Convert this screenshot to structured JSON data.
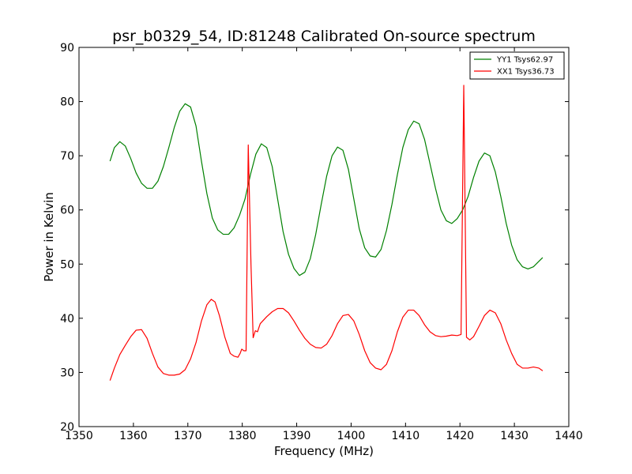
{
  "chart_data": {
    "type": "line",
    "title": "psr_b0329_54, ID:81248 Calibrated On-source spectrum",
    "xlabel": "Frequency (MHz)",
    "ylabel": "Power in Kelvin",
    "xlim": [
      1350,
      1440
    ],
    "ylim": [
      20,
      90
    ],
    "xticks": [
      1350,
      1360,
      1370,
      1380,
      1390,
      1400,
      1410,
      1420,
      1430,
      1440
    ],
    "yticks": [
      20,
      30,
      40,
      50,
      60,
      70,
      80,
      90
    ],
    "grid": false,
    "legend_position": "top-right",
    "series": [
      {
        "name": "YY1 Tsys62.97",
        "color": "#008000",
        "points": [
          [
            1355.7,
            69.0
          ],
          [
            1356.5,
            71.5
          ],
          [
            1357.5,
            72.6
          ],
          [
            1358.5,
            71.8
          ],
          [
            1359.5,
            69.5
          ],
          [
            1360.5,
            66.8
          ],
          [
            1361.5,
            64.9
          ],
          [
            1362.5,
            64.0
          ],
          [
            1363.5,
            64.0
          ],
          [
            1364.5,
            65.3
          ],
          [
            1365.5,
            68.0
          ],
          [
            1366.5,
            71.5
          ],
          [
            1367.5,
            75.2
          ],
          [
            1368.5,
            78.2
          ],
          [
            1369.5,
            79.6
          ],
          [
            1370.5,
            79.0
          ],
          [
            1371.5,
            75.5
          ],
          [
            1372.5,
            69.0
          ],
          [
            1373.5,
            63.0
          ],
          [
            1374.5,
            58.5
          ],
          [
            1375.5,
            56.3
          ],
          [
            1376.5,
            55.5
          ],
          [
            1377.5,
            55.5
          ],
          [
            1378.5,
            56.7
          ],
          [
            1379.5,
            59.0
          ],
          [
            1380.5,
            62.0
          ],
          [
            1381.5,
            66.5
          ],
          [
            1382.5,
            70.3
          ],
          [
            1383.5,
            72.2
          ],
          [
            1384.5,
            71.5
          ],
          [
            1385.5,
            68.0
          ],
          [
            1386.5,
            62.0
          ],
          [
            1387.5,
            56.0
          ],
          [
            1388.5,
            51.8
          ],
          [
            1389.5,
            49.2
          ],
          [
            1390.5,
            47.9
          ],
          [
            1391.5,
            48.5
          ],
          [
            1392.5,
            51.0
          ],
          [
            1393.5,
            55.5
          ],
          [
            1394.5,
            61.0
          ],
          [
            1395.5,
            66.2
          ],
          [
            1396.5,
            70.0
          ],
          [
            1397.5,
            71.6
          ],
          [
            1398.5,
            71.0
          ],
          [
            1399.5,
            67.5
          ],
          [
            1400.5,
            62.0
          ],
          [
            1401.5,
            56.5
          ],
          [
            1402.5,
            53.0
          ],
          [
            1403.5,
            51.5
          ],
          [
            1404.5,
            51.3
          ],
          [
            1405.5,
            52.7
          ],
          [
            1406.5,
            56.2
          ],
          [
            1407.5,
            61.0
          ],
          [
            1408.5,
            66.5
          ],
          [
            1409.5,
            71.5
          ],
          [
            1410.5,
            74.8
          ],
          [
            1411.5,
            76.4
          ],
          [
            1412.5,
            75.9
          ],
          [
            1413.5,
            73.0
          ],
          [
            1414.5,
            68.5
          ],
          [
            1415.5,
            64.0
          ],
          [
            1416.5,
            60.0
          ],
          [
            1417.5,
            58.0
          ],
          [
            1418.5,
            57.5
          ],
          [
            1419.5,
            58.4
          ],
          [
            1420.5,
            60.0
          ],
          [
            1421.5,
            62.5
          ],
          [
            1422.5,
            66.0
          ],
          [
            1423.5,
            69.0
          ],
          [
            1424.5,
            70.5
          ],
          [
            1425.5,
            70.0
          ],
          [
            1426.5,
            67.0
          ],
          [
            1427.5,
            62.5
          ],
          [
            1428.5,
            57.5
          ],
          [
            1429.5,
            53.5
          ],
          [
            1430.5,
            50.8
          ],
          [
            1431.5,
            49.5
          ],
          [
            1432.5,
            49.1
          ],
          [
            1433.5,
            49.5
          ],
          [
            1434.5,
            50.5
          ],
          [
            1435.2,
            51.2
          ]
        ]
      },
      {
        "name": "XX1 Tsys36.73",
        "color": "#ff0000",
        "points": [
          [
            1355.7,
            28.5
          ],
          [
            1356.5,
            30.8
          ],
          [
            1357.5,
            33.3
          ],
          [
            1358.5,
            35.0
          ],
          [
            1359.5,
            36.6
          ],
          [
            1360.5,
            37.8
          ],
          [
            1361.5,
            37.9
          ],
          [
            1362.5,
            36.3
          ],
          [
            1363.5,
            33.5
          ],
          [
            1364.5,
            31.0
          ],
          [
            1365.5,
            29.8
          ],
          [
            1366.5,
            29.5
          ],
          [
            1367.5,
            29.5
          ],
          [
            1368.5,
            29.7
          ],
          [
            1369.5,
            30.5
          ],
          [
            1370.5,
            32.5
          ],
          [
            1371.5,
            35.5
          ],
          [
            1372.5,
            39.5
          ],
          [
            1373.5,
            42.5
          ],
          [
            1374.3,
            43.5
          ],
          [
            1375.0,
            43.0
          ],
          [
            1375.8,
            40.5
          ],
          [
            1376.8,
            36.5
          ],
          [
            1377.8,
            33.5
          ],
          [
            1378.5,
            33.0
          ],
          [
            1379.2,
            32.8
          ],
          [
            1379.6,
            33.5
          ],
          [
            1379.9,
            34.3
          ],
          [
            1380.3,
            34.0
          ],
          [
            1380.7,
            34.0
          ],
          [
            1381.1,
            72.0
          ],
          [
            1381.6,
            50.0
          ],
          [
            1382.0,
            36.4
          ],
          [
            1382.4,
            37.7
          ],
          [
            1382.8,
            37.5
          ],
          [
            1383.3,
            39.0
          ],
          [
            1384.5,
            40.3
          ],
          [
            1385.5,
            41.2
          ],
          [
            1386.5,
            41.8
          ],
          [
            1387.5,
            41.8
          ],
          [
            1388.5,
            41.0
          ],
          [
            1389.5,
            39.5
          ],
          [
            1390.5,
            37.8
          ],
          [
            1391.5,
            36.3
          ],
          [
            1392.5,
            35.2
          ],
          [
            1393.5,
            34.6
          ],
          [
            1394.5,
            34.5
          ],
          [
            1395.5,
            35.2
          ],
          [
            1396.5,
            36.8
          ],
          [
            1397.5,
            39.0
          ],
          [
            1398.5,
            40.5
          ],
          [
            1399.5,
            40.7
          ],
          [
            1400.5,
            39.5
          ],
          [
            1401.5,
            37.0
          ],
          [
            1402.5,
            34.0
          ],
          [
            1403.5,
            31.8
          ],
          [
            1404.5,
            30.8
          ],
          [
            1405.5,
            30.5
          ],
          [
            1406.5,
            31.5
          ],
          [
            1407.5,
            34.0
          ],
          [
            1408.5,
            37.5
          ],
          [
            1409.5,
            40.2
          ],
          [
            1410.5,
            41.5
          ],
          [
            1411.5,
            41.5
          ],
          [
            1412.5,
            40.5
          ],
          [
            1413.5,
            38.8
          ],
          [
            1414.5,
            37.5
          ],
          [
            1415.5,
            36.8
          ],
          [
            1416.5,
            36.6
          ],
          [
            1417.5,
            36.7
          ],
          [
            1418.5,
            36.9
          ],
          [
            1419.5,
            36.8
          ],
          [
            1420.2,
            37.0
          ],
          [
            1420.7,
            83.0
          ],
          [
            1421.2,
            36.5
          ],
          [
            1421.8,
            36.0
          ],
          [
            1422.5,
            36.6
          ],
          [
            1423.5,
            38.5
          ],
          [
            1424.5,
            40.5
          ],
          [
            1425.5,
            41.5
          ],
          [
            1426.5,
            41.0
          ],
          [
            1427.5,
            39.0
          ],
          [
            1428.5,
            36.0
          ],
          [
            1429.5,
            33.5
          ],
          [
            1430.5,
            31.5
          ],
          [
            1431.5,
            30.8
          ],
          [
            1432.5,
            30.8
          ],
          [
            1433.5,
            31.0
          ],
          [
            1434.5,
            30.8
          ],
          [
            1435.2,
            30.3
          ]
        ]
      }
    ]
  }
}
